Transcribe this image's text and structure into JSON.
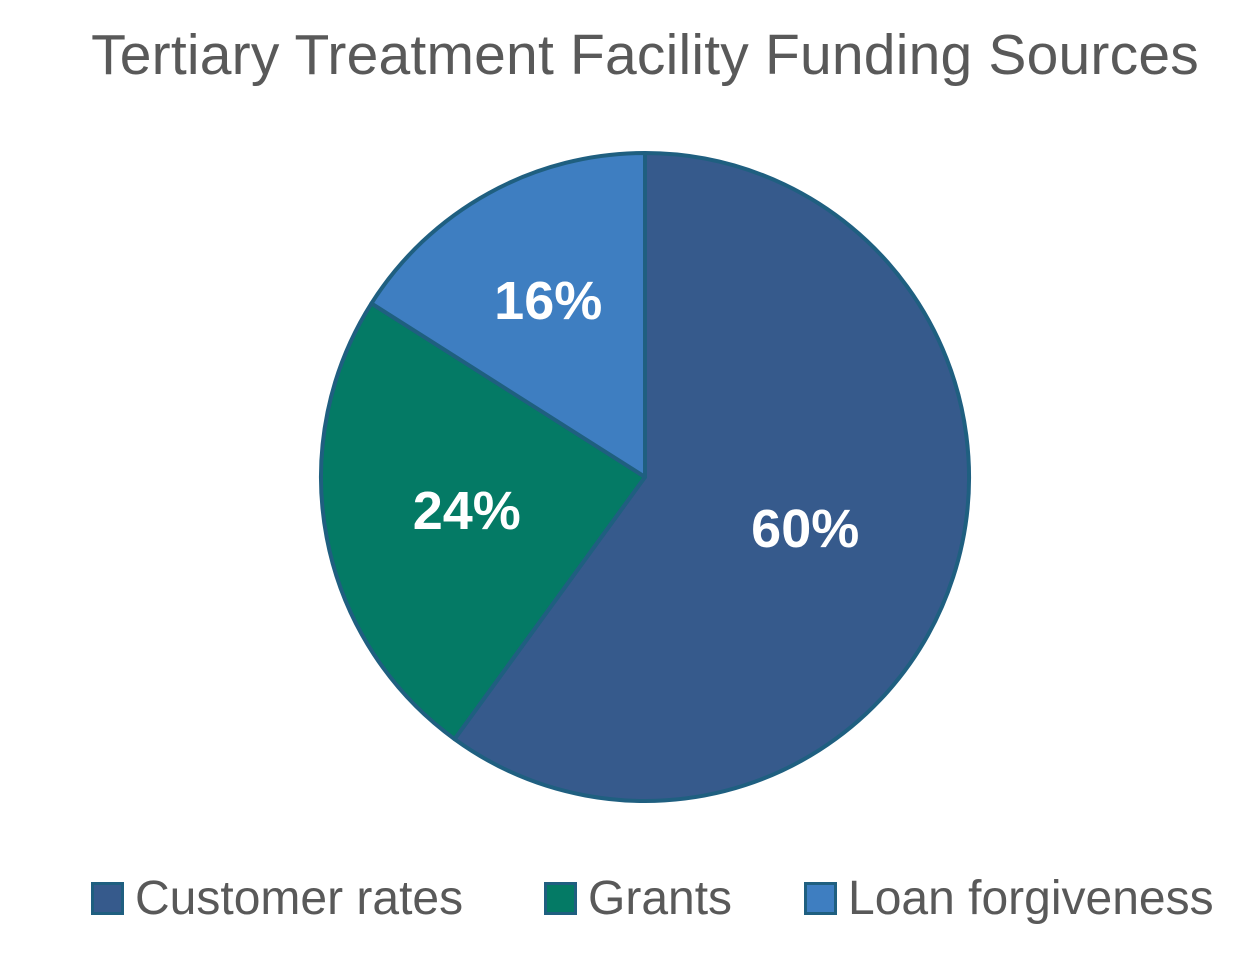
{
  "chart_data": {
    "type": "pie",
    "title": "Tertiary Treatment Facility Funding Sources",
    "categories": [
      "Customer rates",
      "Grants",
      "Loan forgiveness"
    ],
    "values": [
      60,
      24,
      16
    ],
    "data_labels": [
      "60%",
      "24%",
      "16%"
    ],
    "colors": [
      "#365a8c",
      "#047a65",
      "#3e7ec1"
    ],
    "outline_color": "#1f5f80",
    "start": "12 o'clock, clockwise",
    "legend_position": "bottom"
  }
}
